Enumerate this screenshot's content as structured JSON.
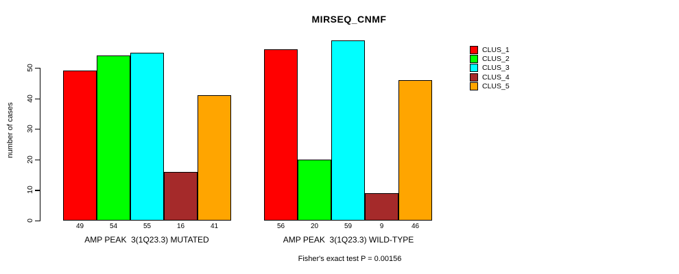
{
  "title": "MIRSEQ_CNMF",
  "caption": "Fisher's exact test P = 0.00156",
  "axis": {
    "ylabel": "number of cases",
    "yticks": [
      0,
      10,
      20,
      30,
      40,
      50
    ]
  },
  "chart_data": {
    "type": "bar",
    "title": "MIRSEQ_CNMF",
    "xlabel": "",
    "ylabel": "number of cases",
    "groups": [
      "AMP PEAK  3(1Q23.3) MUTATED",
      "AMP PEAK  3(1Q23.3) WILD-TYPE"
    ],
    "series": [
      {
        "name": "CLUS_1",
        "color": "#FF0000",
        "values": [
          49,
          56
        ]
      },
      {
        "name": "CLUS_2",
        "color": "#00FF00",
        "values": [
          54,
          20
        ]
      },
      {
        "name": "CLUS_3",
        "color": "#00FFFF",
        "values": [
          55,
          59
        ]
      },
      {
        "name": "CLUS_4",
        "color": "#A52A2A",
        "values": [
          16,
          9
        ]
      },
      {
        "name": "CLUS_5",
        "color": "#FFA500",
        "values": [
          41,
          46
        ]
      }
    ],
    "bar_labels": [
      [
        49,
        54,
        55,
        16,
        41
      ],
      [
        56,
        20,
        59,
        9,
        46
      ]
    ],
    "yticks": [
      0,
      10,
      20,
      30,
      40,
      50
    ],
    "ylim": [
      0,
      59
    ],
    "grid": false,
    "legend_position": "right",
    "legend_entries": [
      "CLUS_1",
      "CLUS_2",
      "CLUS_3",
      "CLUS_4",
      "CLUS_5"
    ],
    "annotation": "Fisher's exact test P = 0.00156",
    "colors": {
      "foreground": "#000000",
      "background": "#FFFFFF"
    }
  }
}
